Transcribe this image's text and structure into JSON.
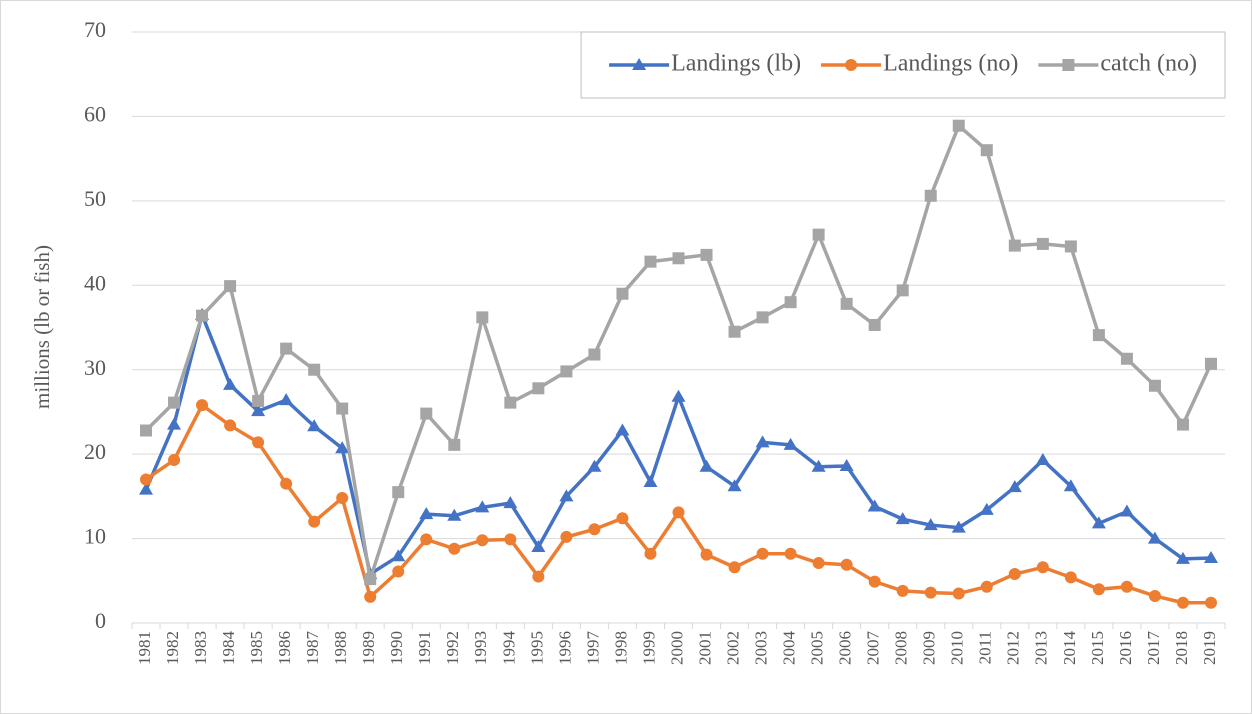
{
  "chart_data": {
    "type": "line",
    "y_label": "millions (lb or fish)",
    "categories": [
      "1981",
      "1982",
      "1983",
      "1984",
      "1985",
      "1986",
      "1987",
      "1988",
      "1989",
      "1990",
      "1991",
      "1992",
      "1993",
      "1994",
      "1995",
      "1996",
      "1997",
      "1998",
      "1999",
      "2000",
      "2001",
      "2002",
      "2003",
      "2004",
      "2005",
      "2006",
      "2007",
      "2008",
      "2009",
      "2010",
      "2011",
      "2012",
      "2013",
      "2014",
      "2015",
      "2016",
      "2017",
      "2018",
      "2019"
    ],
    "series": [
      {
        "name": "Landings (lb)",
        "color": "#4472c4",
        "marker": "triangle",
        "values": [
          15.8,
          23.5,
          36.5,
          28.2,
          25.1,
          26.4,
          23.3,
          20.7,
          5.8,
          7.9,
          12.9,
          12.7,
          13.7,
          14.2,
          9.0,
          15.0,
          18.5,
          22.8,
          16.7,
          26.8,
          18.5,
          16.2,
          21.4,
          21.1,
          18.5,
          18.6,
          13.8,
          12.3,
          11.6,
          11.3,
          13.4,
          16.1,
          19.3,
          16.2,
          11.8,
          13.2,
          10.0,
          7.6,
          7.7
        ]
      },
      {
        "name": "Landings (no)",
        "color": "#ed7d31",
        "marker": "circle",
        "values": [
          17.0,
          19.3,
          25.8,
          23.4,
          21.4,
          16.5,
          12.0,
          14.8,
          3.1,
          6.1,
          9.9,
          8.8,
          9.8,
          9.9,
          5.5,
          10.2,
          11.1,
          12.4,
          8.2,
          13.1,
          8.1,
          6.6,
          8.2,
          8.2,
          7.1,
          6.9,
          4.9,
          3.8,
          3.6,
          3.5,
          4.3,
          5.8,
          6.6,
          5.4,
          4.0,
          4.3,
          3.2,
          2.4,
          2.4
        ]
      },
      {
        "name": "catch (no)",
        "color": "#a5a5a5",
        "marker": "square",
        "values": [
          22.8,
          26.1,
          36.4,
          39.9,
          26.3,
          32.5,
          30.0,
          25.4,
          5.2,
          15.5,
          24.8,
          21.1,
          36.2,
          26.1,
          27.8,
          29.8,
          31.8,
          39.0,
          42.8,
          43.2,
          43.6,
          34.5,
          36.2,
          38.0,
          46.0,
          37.8,
          35.3,
          39.4,
          50.6,
          58.9,
          56.0,
          44.7,
          44.9,
          44.6,
          34.1,
          31.3,
          28.1,
          23.5,
          30.7
        ]
      }
    ],
    "ylim": [
      0,
      70
    ],
    "yticks": [
      0,
      10,
      20,
      30,
      40,
      50,
      60,
      70
    ],
    "grid": true,
    "legend": "top-right"
  }
}
